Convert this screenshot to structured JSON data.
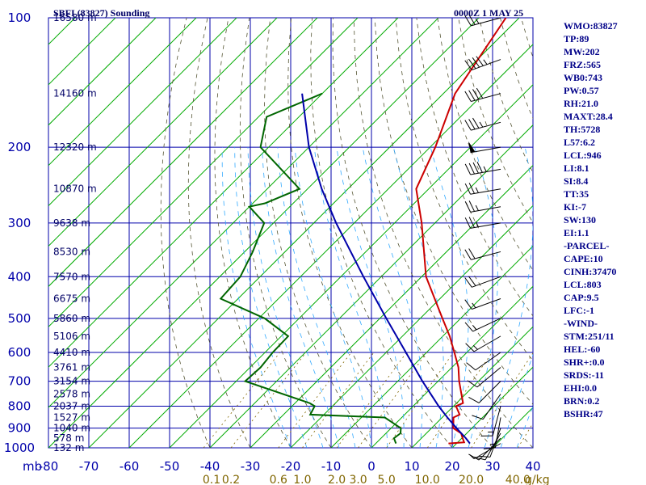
{
  "header": {
    "station": "SBFI (83827) Sounding",
    "time": "0000Z  1 MAY 25"
  },
  "chart_data": {
    "type": "line",
    "title": "SBFI (83827) Sounding",
    "xlabel": "",
    "ylabel": "mb",
    "xlim": [
      -80,
      40
    ],
    "ylim": [
      1000,
      100
    ],
    "y_scale": "log",
    "pressure_ticks": [
      100,
      200,
      300,
      400,
      500,
      600,
      700,
      800,
      900,
      1000
    ],
    "temp_ticks": [
      -80,
      -70,
      -60,
      -50,
      -40,
      -30,
      -20,
      -10,
      0,
      10,
      20,
      30,
      40
    ],
    "height_labels": [
      {
        "p": 100,
        "label": "16580 m"
      },
      {
        "p": 150,
        "label": "14160 m"
      },
      {
        "p": 200,
        "label": "12320 m"
      },
      {
        "p": 250,
        "label": "10870 m"
      },
      {
        "p": 300,
        "label": "9638 m"
      },
      {
        "p": 350,
        "label": "8530 m"
      },
      {
        "p": 400,
        "label": "7570 m"
      },
      {
        "p": 450,
        "label": "6675 m"
      },
      {
        "p": 500,
        "label": "5860 m"
      },
      {
        "p": 550,
        "label": "5106 m"
      },
      {
        "p": 600,
        "label": "4410 m"
      },
      {
        "p": 650,
        "label": "3761 m"
      },
      {
        "p": 700,
        "label": "3154 m"
      },
      {
        "p": 750,
        "label": "2578 m"
      },
      {
        "p": 800,
        "label": "2037 m"
      },
      {
        "p": 850,
        "label": "1527 m"
      },
      {
        "p": 900,
        "label": "1040 m"
      },
      {
        "p": 950,
        "label": "578 m"
      },
      {
        "p": 1000,
        "label": "132 m"
      }
    ],
    "mixing_ratio_labels": [
      "0.1",
      "0.2",
      "0.6",
      "1.0",
      "2.0",
      "3.0",
      "5.0",
      "10.0",
      "20.0",
      "40.0"
    ],
    "mixing_ratio_unit": "g/kg",
    "series": [
      {
        "name": "temperature",
        "color": "#cc0000",
        "p": [
          977,
          971,
          950,
          925,
          900,
          850,
          837,
          800,
          787,
          700,
          650,
          600,
          550,
          500,
          450,
          400,
          300,
          250,
          200,
          150,
          100
        ],
        "t": [
          18.0,
          21.6,
          20.2,
          18.6,
          15.4,
          12.8,
          13.6,
          10.6,
          11.6,
          5.2,
          1.6,
          -3.1,
          -8.3,
          -14.5,
          -21.3,
          -28.9,
          -43.3,
          -53.1,
          -58.7,
          -67.1,
          -73.3
        ]
      },
      {
        "name": "dewpoint",
        "color": "#006600",
        "p": [
          977,
          971,
          950,
          925,
          900,
          850,
          837,
          800,
          787,
          700,
          650,
          600,
          550,
          500,
          450,
          400,
          350,
          300,
          275,
          270,
          250,
          200,
          170,
          150
        ],
        "t": [
          5.0,
          4.6,
          3.2,
          3.6,
          2.4,
          -4.2,
          -23.4,
          -24.4,
          -26.4,
          -47.8,
          -47.4,
          -48.1,
          -48.3,
          -58.5,
          -74.3,
          -74.9,
          -78.0,
          -82.3,
          -90.0,
          -87.0,
          -82.0,
          -102.0,
          -108.0,
          -100.0
        ]
      },
      {
        "name": "parcel",
        "color": "#0000aa",
        "p": [
          977,
          950,
          900,
          850,
          803,
          800,
          700,
          600,
          500,
          400,
          300,
          250,
          200,
          150
        ],
        "t": [
          23.3,
          21.0,
          16.2,
          11.3,
          6.6,
          6.3,
          -3.9,
          -15.1,
          -28.4,
          -44.4,
          -64.5,
          -76.5,
          -90.0,
          -105.0
        ]
      }
    ],
    "wind_barbs": [
      {
        "p": 100,
        "dir": 255,
        "spd": 25
      },
      {
        "p": 125,
        "dir": 250,
        "spd": 45
      },
      {
        "p": 150,
        "dir": 255,
        "spd": 40
      },
      {
        "p": 175,
        "dir": 255,
        "spd": 35
      },
      {
        "p": 200,
        "dir": 260,
        "spd": 50
      },
      {
        "p": 225,
        "dir": 260,
        "spd": 45
      },
      {
        "p": 250,
        "dir": 260,
        "spd": 25
      },
      {
        "p": 275,
        "dir": 260,
        "spd": 25
      },
      {
        "p": 300,
        "dir": 260,
        "spd": 25
      },
      {
        "p": 350,
        "dir": 255,
        "spd": 20
      },
      {
        "p": 400,
        "dir": 250,
        "spd": 20
      },
      {
        "p": 450,
        "dir": 250,
        "spd": 15
      },
      {
        "p": 500,
        "dir": 245,
        "spd": 15
      },
      {
        "p": 550,
        "dir": 240,
        "spd": 15
      },
      {
        "p": 600,
        "dir": 235,
        "spd": 10
      },
      {
        "p": 650,
        "dir": 230,
        "spd": 10
      },
      {
        "p": 700,
        "dir": 225,
        "spd": 10
      },
      {
        "p": 750,
        "dir": 215,
        "spd": 10
      },
      {
        "p": 800,
        "dir": 195,
        "spd": 15
      },
      {
        "p": 850,
        "dir": 190,
        "spd": 15
      },
      {
        "p": 900,
        "dir": 200,
        "spd": 10
      },
      {
        "p": 925,
        "dir": 210,
        "spd": 10
      },
      {
        "p": 950,
        "dir": 225,
        "spd": 10
      },
      {
        "p": 977,
        "dir": 240,
        "spd": 5
      }
    ]
  },
  "indices": [
    "WMO:83827",
    "TP:89",
    "MW:202",
    "FRZ:565",
    "WB0:743",
    "PW:0.57",
    "RH:21.0",
    "MAXT:28.4",
    "TH:5728",
    "L57:6.2",
    "LCL:946",
    "LI:8.1",
    "SI:8.4",
    "TT:35",
    "KI:-7",
    "SW:130",
    "EI:1.1",
    "-PARCEL-",
    "CAPE:10",
    "CINH:37470",
    "LCL:803",
    "CAP:9.5",
    "LFC:-1",
    "-WIND-",
    "STM:251/11",
    "HEL:-60",
    "SHR+:0.0",
    "SRDS:-11",
    "EHI:0.0",
    "BRN:0.2",
    "BSHR:47"
  ]
}
